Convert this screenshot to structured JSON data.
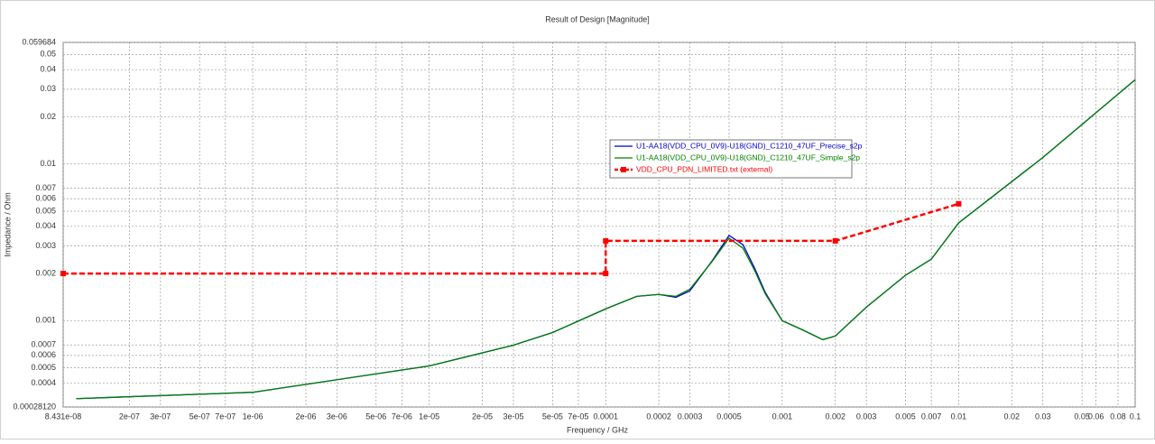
{
  "chart_data": {
    "type": "line",
    "title": "Result of Design [Magnitude]",
    "xlabel": "Frequency / GHz",
    "ylabel": "Impedance / Ohm",
    "xscale": "log",
    "yscale": "log",
    "grid": true,
    "xlim": [
      8.431e-08,
      0.1
    ],
    "ylim": [
      0.0002812,
      0.059684
    ],
    "xticks": [
      {
        "value": 8.431e-08,
        "label": "8.431e-08"
      },
      {
        "value": 2e-07,
        "label": "2e-07"
      },
      {
        "value": 3e-07,
        "label": "3e-07"
      },
      {
        "value": 5e-07,
        "label": "5e-07"
      },
      {
        "value": 7e-07,
        "label": "7e-07"
      },
      {
        "value": 1e-06,
        "label": "1e-06"
      },
      {
        "value": 2e-06,
        "label": "2e-06"
      },
      {
        "value": 3e-06,
        "label": "3e-06"
      },
      {
        "value": 5e-06,
        "label": "5e-06"
      },
      {
        "value": 7e-06,
        "label": "7e-06"
      },
      {
        "value": 1e-05,
        "label": "1e-05"
      },
      {
        "value": 2e-05,
        "label": "2e-05"
      },
      {
        "value": 3e-05,
        "label": "3e-05"
      },
      {
        "value": 5e-05,
        "label": "5e-05"
      },
      {
        "value": 7e-05,
        "label": "7e-05"
      },
      0.0001,
      0.0002,
      0.0003,
      0.0005,
      0.001,
      0.002,
      0.003,
      0.005,
      0.007,
      0.01,
      0.02,
      0.03,
      0.05,
      0.06,
      0.08,
      0.1
    ],
    "yticks": [
      {
        "value": 0.0002812,
        "label": "0.00028120"
      },
      0.0004,
      0.0005,
      0.0006,
      0.0007,
      0.001,
      0.002,
      0.003,
      0.004,
      0.005,
      0.006,
      0.007,
      0.01,
      0.02,
      0.03,
      0.04,
      0.05,
      0.059684
    ],
    "series": [
      {
        "name": "U1-AA18(VDD_CPU_0V9)-U18(GND)_C1210_47UF_Precise_s2p",
        "color": "#0000cc",
        "style": "solid",
        "x": [
          1e-07,
          1e-06,
          1e-05,
          3e-05,
          5e-05,
          0.0001,
          0.00015,
          0.0002,
          0.00025,
          0.0003,
          0.0004,
          0.0005,
          0.0006,
          0.0007,
          0.0008,
          0.001,
          0.0013,
          0.0017,
          0.002,
          0.003,
          0.005,
          0.007,
          0.01,
          0.03,
          0.1
        ],
        "values": [
          0.000318,
          0.000349,
          0.000514,
          0.000698,
          0.00084,
          0.00119,
          0.00143,
          0.00147,
          0.00141,
          0.00155,
          0.0024,
          0.0035,
          0.00305,
          0.00215,
          0.00152,
          0.001,
          0.000875,
          0.000756,
          0.000798,
          0.00122,
          0.00195,
          0.00247,
          0.00421,
          0.011,
          0.0345
        ]
      },
      {
        "name": "U1-AA18(VDD_CPU_0V9)-U18(GND)_C1210_47UF_Simple_s2p",
        "color": "#008000",
        "style": "solid",
        "x": [
          1e-07,
          1e-06,
          1e-05,
          3e-05,
          5e-05,
          0.0001,
          0.00015,
          0.0002,
          0.00025,
          0.0003,
          0.0004,
          0.0005,
          0.0006,
          0.0007,
          0.0008,
          0.001,
          0.0013,
          0.0017,
          0.002,
          0.003,
          0.005,
          0.007,
          0.01,
          0.03,
          0.1
        ],
        "values": [
          0.000318,
          0.000349,
          0.000514,
          0.000698,
          0.00084,
          0.00119,
          0.00143,
          0.00147,
          0.00143,
          0.00159,
          0.00238,
          0.00336,
          0.0029,
          0.00208,
          0.00149,
          0.001,
          0.000875,
          0.000756,
          0.000798,
          0.00122,
          0.00195,
          0.00247,
          0.00421,
          0.011,
          0.0345
        ]
      },
      {
        "name": "VDD_CPU_PDN_LIMITED.txt (external)",
        "color": "#ff0000",
        "style": "dashed",
        "markers": true,
        "x": [
          8.431e-08,
          0.0001,
          0.0001,
          0.002,
          0.01
        ],
        "values": [
          0.002,
          0.002,
          0.00323,
          0.00323,
          0.00557
        ]
      }
    ]
  }
}
